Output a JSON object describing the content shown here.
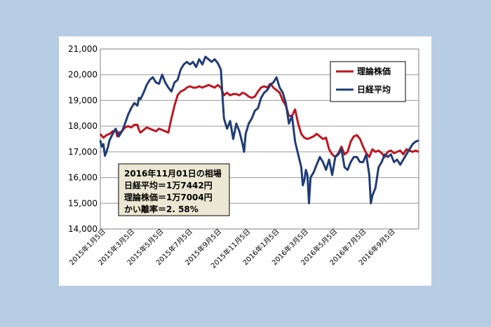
{
  "chart_data": {
    "type": "line",
    "title": "",
    "xlabel": "",
    "ylabel": "",
    "ylim": [
      14000,
      21000
    ],
    "yticks": [
      "14,000",
      "15,000",
      "16,000",
      "17,000",
      "18,000",
      "19,000",
      "20,000",
      "21,000"
    ],
    "xticks": [
      "2015年1月5日",
      "2015年3月5日",
      "2015年5月5日",
      "2015年7月5日",
      "2015年9月5日",
      "2015年11月5日",
      "2016年1月5日",
      "2016年3月5日",
      "2016年5月5日",
      "2016年7月5日",
      "2016年9月5日"
    ],
    "grid": true,
    "legend_position": "top-right",
    "series": [
      {
        "name": "理論株価",
        "color": "#c0161f",
        "points": [
          [
            0,
            17700
          ],
          [
            2,
            17550
          ],
          [
            4,
            17650
          ],
          [
            6,
            17700
          ],
          [
            8,
            17800
          ],
          [
            10,
            17850
          ],
          [
            11,
            17600
          ],
          [
            12,
            17750
          ],
          [
            14,
            17800
          ],
          [
            16,
            17950
          ],
          [
            18,
            18000
          ],
          [
            20,
            17950
          ],
          [
            22,
            18050
          ],
          [
            24,
            18050
          ],
          [
            25,
            17850
          ],
          [
            26,
            17750
          ],
          [
            28,
            17850
          ],
          [
            30,
            17950
          ],
          [
            32,
            17900
          ],
          [
            34,
            17850
          ],
          [
            36,
            17800
          ],
          [
            38,
            17900
          ],
          [
            40,
            17850
          ],
          [
            42,
            17800
          ],
          [
            44,
            17750
          ],
          [
            46,
            18300
          ],
          [
            48,
            18800
          ],
          [
            50,
            19200
          ],
          [
            52,
            19350
          ],
          [
            54,
            19400
          ],
          [
            56,
            19500
          ],
          [
            58,
            19550
          ],
          [
            60,
            19500
          ],
          [
            62,
            19500
          ],
          [
            64,
            19550
          ],
          [
            66,
            19500
          ],
          [
            68,
            19550
          ],
          [
            70,
            19600
          ],
          [
            72,
            19550
          ],
          [
            74,
            19500
          ],
          [
            76,
            19600
          ],
          [
            78,
            19500
          ],
          [
            80,
            19200
          ],
          [
            82,
            19300
          ],
          [
            84,
            19200
          ],
          [
            86,
            19250
          ],
          [
            88,
            19250
          ],
          [
            90,
            19200
          ],
          [
            92,
            19300
          ],
          [
            94,
            19250
          ],
          [
            96,
            19150
          ],
          [
            98,
            19100
          ],
          [
            100,
            19150
          ],
          [
            102,
            19350
          ],
          [
            104,
            19500
          ],
          [
            106,
            19550
          ],
          [
            108,
            19500
          ],
          [
            110,
            19650
          ],
          [
            112,
            19500
          ],
          [
            114,
            19400
          ],
          [
            116,
            19300
          ],
          [
            118,
            19000
          ],
          [
            120,
            18800
          ],
          [
            122,
            18400
          ],
          [
            124,
            18400
          ],
          [
            126,
            18650
          ],
          [
            128,
            18100
          ],
          [
            130,
            17700
          ],
          [
            132,
            17550
          ],
          [
            134,
            17500
          ],
          [
            136,
            17550
          ],
          [
            138,
            17600
          ],
          [
            140,
            17700
          ],
          [
            142,
            17600
          ],
          [
            144,
            17500
          ],
          [
            146,
            17550
          ],
          [
            148,
            17100
          ],
          [
            150,
            16900
          ],
          [
            152,
            16800
          ],
          [
            154,
            16950
          ],
          [
            156,
            17200
          ],
          [
            158,
            16900
          ],
          [
            160,
            17000
          ],
          [
            162,
            17400
          ],
          [
            164,
            17600
          ],
          [
            166,
            17650
          ],
          [
            168,
            17500
          ],
          [
            170,
            17200
          ],
          [
            172,
            16950
          ],
          [
            174,
            16800
          ],
          [
            176,
            17100
          ],
          [
            178,
            17000
          ],
          [
            180,
            17050
          ],
          [
            182,
            16950
          ],
          [
            184,
            16800
          ],
          [
            186,
            17000
          ],
          [
            188,
            17050
          ],
          [
            190,
            16950
          ],
          [
            192,
            17000
          ],
          [
            194,
            17050
          ],
          [
            196,
            16900
          ],
          [
            198,
            17100
          ],
          [
            200,
            17050
          ],
          [
            202,
            17000
          ],
          [
            204,
            17050
          ],
          [
            206,
            17000
          ]
        ]
      },
      {
        "name": "日経平均",
        "color": "#1f3c78",
        "points": [
          [
            0,
            17450
          ],
          [
            1,
            17200
          ],
          [
            2,
            17300
          ],
          [
            3,
            16850
          ],
          [
            4,
            17000
          ],
          [
            5,
            17200
          ],
          [
            6,
            17450
          ],
          [
            8,
            17700
          ],
          [
            10,
            17900
          ],
          [
            12,
            17600
          ],
          [
            14,
            17800
          ],
          [
            16,
            18100
          ],
          [
            18,
            18450
          ],
          [
            20,
            18700
          ],
          [
            22,
            18900
          ],
          [
            24,
            18800
          ],
          [
            25,
            19100
          ],
          [
            26,
            19050
          ],
          [
            28,
            19300
          ],
          [
            30,
            19600
          ],
          [
            32,
            19800
          ],
          [
            34,
            19900
          ],
          [
            36,
            19700
          ],
          [
            38,
            19650
          ],
          [
            40,
            20000
          ],
          [
            42,
            19700
          ],
          [
            44,
            19500
          ],
          [
            46,
            19350
          ],
          [
            48,
            19700
          ],
          [
            50,
            19800
          ],
          [
            52,
            20200
          ],
          [
            54,
            20400
          ],
          [
            56,
            20500
          ],
          [
            58,
            20400
          ],
          [
            60,
            20500
          ],
          [
            62,
            20300
          ],
          [
            64,
            20600
          ],
          [
            66,
            20400
          ],
          [
            68,
            20700
          ],
          [
            70,
            20600
          ],
          [
            72,
            20500
          ],
          [
            74,
            20600
          ],
          [
            76,
            20450
          ],
          [
            78,
            20200
          ],
          [
            79,
            19200
          ],
          [
            80,
            18300
          ],
          [
            82,
            17900
          ],
          [
            84,
            18200
          ],
          [
            86,
            17500
          ],
          [
            88,
            18100
          ],
          [
            90,
            17800
          ],
          [
            92,
            17300
          ],
          [
            93,
            17000
          ],
          [
            94,
            17700
          ],
          [
            96,
            18100
          ],
          [
            98,
            18300
          ],
          [
            100,
            18600
          ],
          [
            102,
            18700
          ],
          [
            104,
            19100
          ],
          [
            106,
            19300
          ],
          [
            108,
            19400
          ],
          [
            110,
            19600
          ],
          [
            112,
            19700
          ],
          [
            114,
            19900
          ],
          [
            116,
            19500
          ],
          [
            118,
            19300
          ],
          [
            120,
            18900
          ],
          [
            122,
            18100
          ],
          [
            124,
            18400
          ],
          [
            126,
            17400
          ],
          [
            128,
            16900
          ],
          [
            130,
            16400
          ],
          [
            131,
            15700
          ],
          [
            132,
            15900
          ],
          [
            133,
            16300
          ],
          [
            134,
            16100
          ],
          [
            135,
            15000
          ],
          [
            136,
            16000
          ],
          [
            138,
            16200
          ],
          [
            140,
            16500
          ],
          [
            142,
            16800
          ],
          [
            144,
            16600
          ],
          [
            146,
            16300
          ],
          [
            148,
            16700
          ],
          [
            150,
            16100
          ],
          [
            152,
            16800
          ],
          [
            154,
            16900
          ],
          [
            156,
            17100
          ],
          [
            158,
            16400
          ],
          [
            160,
            16300
          ],
          [
            162,
            16600
          ],
          [
            164,
            16800
          ],
          [
            166,
            16800
          ],
          [
            168,
            16600
          ],
          [
            170,
            16600
          ],
          [
            172,
            16900
          ],
          [
            174,
            16100
          ],
          [
            175,
            15000
          ],
          [
            176,
            15300
          ],
          [
            178,
            15600
          ],
          [
            180,
            16400
          ],
          [
            182,
            16600
          ],
          [
            184,
            16900
          ],
          [
            186,
            16800
          ],
          [
            188,
            16900
          ],
          [
            190,
            16600
          ],
          [
            192,
            16700
          ],
          [
            194,
            16500
          ],
          [
            196,
            16700
          ],
          [
            198,
            16900
          ],
          [
            200,
            17100
          ],
          [
            202,
            17300
          ],
          [
            204,
            17400
          ],
          [
            206,
            17442
          ]
        ]
      }
    ],
    "annotation": {
      "lines": [
        "2016年11月01日の相場",
        "日経平均＝1万7442円",
        "理論株価＝1万7004円",
        "かい離率＝2. 58%"
      ]
    }
  }
}
